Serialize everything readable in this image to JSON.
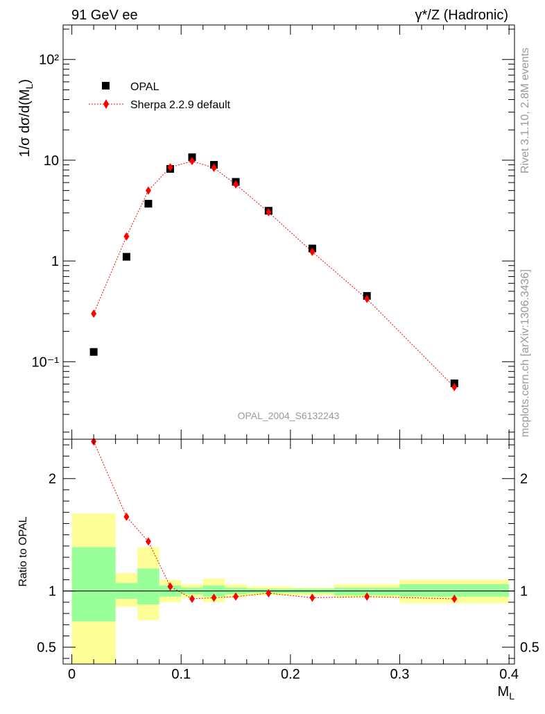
{
  "header": {
    "left": "91 GeV ee",
    "right": "γ*/Z (Hadronic)"
  },
  "side_text": {
    "upper": "Rivet 3.1.10,  2.8M events",
    "lower": "mcplots.cern.ch [arXiv:1306.3436]"
  },
  "watermark": "OPAL_2004_S6132243",
  "chart_data": {
    "type": "scatter",
    "xlabel": "M_L",
    "xlim": [
      -0.008,
      0.405
    ],
    "x_ticks": [
      {
        "value": 0,
        "label": "0"
      },
      {
        "value": 0.1,
        "label": "0.1"
      },
      {
        "value": 0.2,
        "label": "0.2"
      },
      {
        "value": 0.3,
        "label": "0.3"
      },
      {
        "value": 0.4,
        "label": "0.4"
      }
    ],
    "main": {
      "ylabel": "1/σ dσ/d(M_L)",
      "yscale": "log",
      "ylim": [
        0.017,
        220
      ],
      "y_ticks": [
        {
          "value": 0.1,
          "label": "10⁻¹"
        },
        {
          "value": 1,
          "label": "1"
        },
        {
          "value": 10,
          "label": "10"
        },
        {
          "value": 100,
          "label": "10²"
        }
      ],
      "legend_position": "top-left",
      "series": [
        {
          "name": "OPAL",
          "color": "#000000",
          "marker": "square",
          "x": [
            0.02,
            0.05,
            0.07,
            0.09,
            0.11,
            0.13,
            0.15,
            0.18,
            0.22,
            0.27,
            0.35
          ],
          "y": [
            0.125,
            1.1,
            3.7,
            8.2,
            10.7,
            9.0,
            6.1,
            3.15,
            1.33,
            0.45,
            0.061
          ]
        },
        {
          "name": "Sherpa 2.2.9 default",
          "color": "#ff0000",
          "marker": "diamond",
          "line": "dotted",
          "x": [
            0.02,
            0.05,
            0.07,
            0.09,
            0.11,
            0.13,
            0.15,
            0.18,
            0.22,
            0.27,
            0.35
          ],
          "y": [
            0.3,
            1.75,
            5.0,
            8.5,
            9.8,
            8.4,
            5.75,
            3.05,
            1.23,
            0.42,
            0.056
          ]
        }
      ]
    },
    "ratio": {
      "ylabel": "Ratio to OPAL",
      "ylim": [
        0.35,
        2.35
      ],
      "y_ticks": [
        {
          "value": 0.5,
          "label": "0.5"
        },
        {
          "value": 1,
          "label": "1"
        },
        {
          "value": 2,
          "label": "2"
        }
      ],
      "bins": [
        {
          "x0": 0.0,
          "x1": 0.04,
          "green": [
            0.73,
            1.39
          ],
          "yellow": [
            0.3,
            1.69
          ]
        },
        {
          "x0": 0.04,
          "x1": 0.06,
          "green": [
            0.93,
            1.07
          ],
          "yellow": [
            0.86,
            1.16
          ]
        },
        {
          "x0": 0.06,
          "x1": 0.08,
          "green": [
            0.88,
            1.2
          ],
          "yellow": [
            0.74,
            1.39
          ]
        },
        {
          "x0": 0.08,
          "x1": 0.1,
          "green": [
            0.95,
            1.05
          ],
          "yellow": [
            0.9,
            1.1
          ]
        },
        {
          "x0": 0.1,
          "x1": 0.12,
          "green": [
            0.97,
            1.03
          ],
          "yellow": [
            0.94,
            1.06
          ]
        },
        {
          "x0": 0.12,
          "x1": 0.14,
          "green": [
            0.95,
            1.05
          ],
          "yellow": [
            0.9,
            1.11
          ]
        },
        {
          "x0": 0.14,
          "x1": 0.16,
          "green": [
            0.97,
            1.03
          ],
          "yellow": [
            0.94,
            1.06
          ]
        },
        {
          "x0": 0.16,
          "x1": 0.2,
          "green": [
            0.98,
            1.02
          ],
          "yellow": [
            0.96,
            1.04
          ]
        },
        {
          "x0": 0.2,
          "x1": 0.24,
          "green": [
            0.98,
            1.02
          ],
          "yellow": [
            0.96,
            1.03
          ]
        },
        {
          "x0": 0.24,
          "x1": 0.3,
          "green": [
            0.96,
            1.03
          ],
          "yellow": [
            0.94,
            1.06
          ]
        },
        {
          "x0": 0.3,
          "x1": 0.4,
          "green": [
            0.95,
            1.06
          ],
          "yellow": [
            0.89,
            1.1
          ]
        }
      ],
      "series": {
        "name": "Sherpa 2.2.9 default",
        "color": "#ff0000",
        "x": [
          0.02,
          0.05,
          0.07,
          0.09,
          0.11,
          0.13,
          0.15,
          0.18,
          0.22,
          0.27,
          0.35
        ],
        "y": [
          2.33,
          1.66,
          1.44,
          1.04,
          0.93,
          0.94,
          0.95,
          0.98,
          0.94,
          0.95,
          0.93
        ]
      }
    }
  }
}
